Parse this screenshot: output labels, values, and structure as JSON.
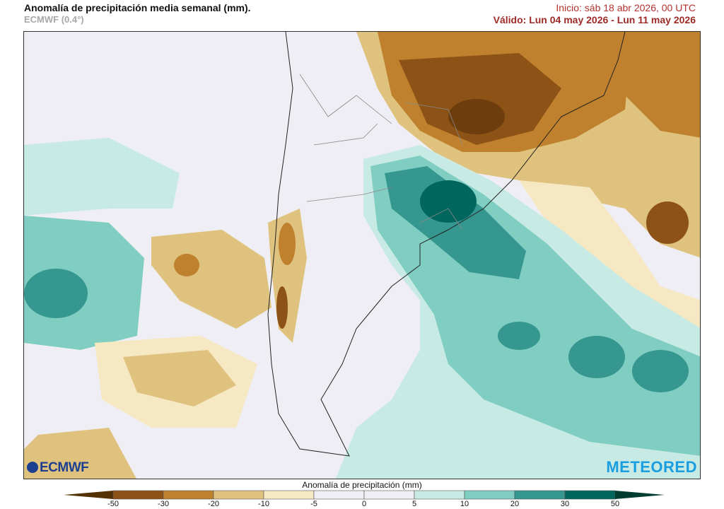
{
  "header": {
    "title": "Anomalía de precipitación media semanal (mm).",
    "model": "ECMWF (0.4°)",
    "init": "Inicio:  sáb 18 abr 2026, 00 UTC",
    "valid": "Válido: Lun 04 may 2026 - Lun 11 may 2026"
  },
  "logos": {
    "left": "ECMWF",
    "right": "METEORED"
  },
  "legend": {
    "title": "Anomalía de precipitación (mm)",
    "ticks": [
      "-50",
      "-30",
      "-20",
      "-10",
      "-5",
      "0",
      "5",
      "10",
      "20",
      "30",
      "50"
    ],
    "colors": [
      "#8c5216",
      "#bf812d",
      "#dfc27d",
      "#f6e8c3",
      "#efeef4",
      "#efeef4",
      "#c7eae5",
      "#80cdc1",
      "#35978f",
      "#01665e"
    ],
    "under_color": "#543005",
    "over_color": "#003c30"
  }
}
